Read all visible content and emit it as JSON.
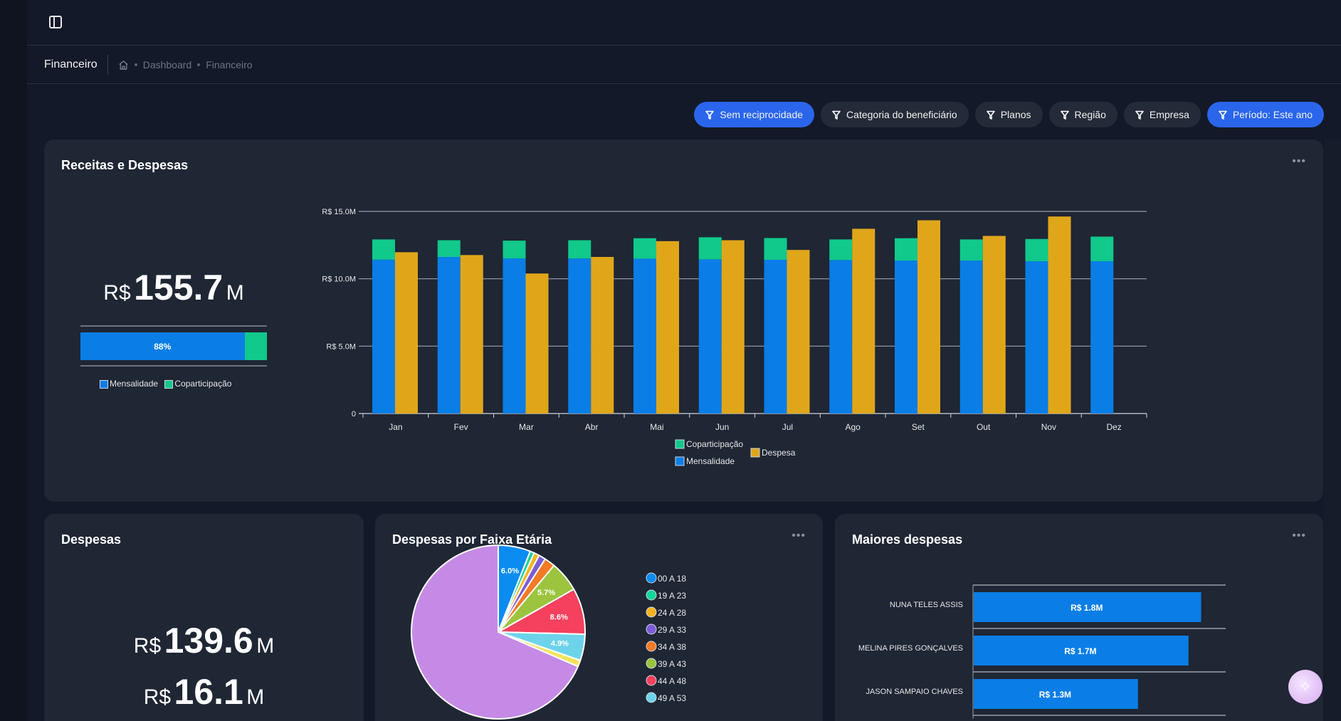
{
  "header": {
    "sidebar_toggle_icon": "sidebar-toggle-icon"
  },
  "breadcrumb": {
    "title": "Financeiro",
    "home_icon": "home-icon",
    "items": [
      "Dashboard",
      "Financeiro"
    ]
  },
  "filters": [
    {
      "label": "Sem reciprocidade",
      "active": true
    },
    {
      "label": "Categoria do beneficiário",
      "active": false
    },
    {
      "label": "Planos",
      "active": false
    },
    {
      "label": "Região",
      "active": false
    },
    {
      "label": "Empresa",
      "active": false
    },
    {
      "label": "Período: Este ano",
      "active": true
    }
  ],
  "receitas": {
    "title": "Receitas e Despesas",
    "more": "•••",
    "total": {
      "currency": "R$",
      "value": "155.7",
      "unit": "M"
    },
    "split": {
      "mensalidade_percent": 88,
      "label": "88%"
    },
    "split_legend": [
      "Mensalidade",
      "Coparticipação"
    ]
  },
  "despesas": {
    "title": "Despesas",
    "total": {
      "currency": "R$",
      "value": "139.6",
      "unit": "M"
    },
    "second": {
      "currency": "R$",
      "value": "16.1",
      "unit": "M"
    }
  },
  "colors": {
    "mensalidade": "#0a7ee6",
    "coparticipacao": "#10c98a",
    "despesa": "#e0a61a",
    "accent": "#2a66ec"
  },
  "chart_data": [
    {
      "type": "bar",
      "title": "Receitas e Despesas",
      "categories": [
        "Jan",
        "Fev",
        "Mar",
        "Abr",
        "Mai",
        "Jun",
        "Jul",
        "Ago",
        "Set",
        "Out",
        "Nov",
        "Dez"
      ],
      "yticks": [
        "0",
        "R$ 5.0M",
        "R$ 10.0M",
        "R$ 15.0M"
      ],
      "ylim": [
        0,
        15
      ],
      "unit": "R$ M",
      "series": [
        {
          "name": "Mensalidade",
          "stack": "receita",
          "color": "#0a7ee6",
          "values": [
            11.42,
            11.62,
            11.51,
            11.51,
            11.49,
            11.44,
            11.41,
            11.39,
            11.35,
            11.35,
            11.3,
            11.3
          ]
        },
        {
          "name": "Coparticipação",
          "stack": "receita",
          "color": "#10c98a",
          "values": [
            1.5,
            1.24,
            1.32,
            1.35,
            1.52,
            1.64,
            1.61,
            1.53,
            1.66,
            1.57,
            1.65,
            1.83
          ]
        },
        {
          "name": "Despesa",
          "stack": "despesa",
          "color": "#e0a61a",
          "values": [
            11.97,
            11.76,
            10.39,
            11.62,
            12.79,
            12.86,
            12.14,
            13.71,
            14.34,
            13.18,
            14.62,
            null
          ]
        }
      ],
      "legend": [
        "Coparticipação",
        "Mensalidade",
        "Despesa"
      ],
      "grid": true
    },
    {
      "type": "pie",
      "title": "Despesas por Faixa Etária",
      "more": "•••",
      "slices": [
        {
          "label": "00 A 18",
          "value": 6.0,
          "color": "#0b8cf0",
          "show_label": true
        },
        {
          "label": "19 A 23",
          "value": 0.8,
          "color": "#14d59a",
          "show_label": false
        },
        {
          "label": "24 A 28",
          "value": 1.0,
          "color": "#f6b51e",
          "show_label": false
        },
        {
          "label": "29 A 33",
          "value": 1.3,
          "color": "#7c5cd6",
          "show_label": false
        },
        {
          "label": "34 A 38",
          "value": 2.0,
          "color": "#f47a24",
          "show_label": false
        },
        {
          "label": "39 A 43",
          "value": 5.7,
          "color": "#9cc43e",
          "show_label": true
        },
        {
          "label": "44 A 48",
          "value": 8.6,
          "color": "#f5405e",
          "show_label": true
        },
        {
          "label": "49 A 53",
          "value": 4.9,
          "color": "#6dd3ea",
          "show_label": true
        },
        {
          "label": "",
          "value": 1.2,
          "color": "#f3e35a",
          "show_label": false
        },
        {
          "label": "",
          "value": 68.5,
          "color": "#c58ae6",
          "show_label": false
        }
      ]
    },
    {
      "type": "bar",
      "orientation": "horizontal",
      "title": "Maiores despesas",
      "more": "•••",
      "categories": [
        "NUNA TELES ASSIS",
        "MELINA PIRES GONÇALVES",
        "JASON SAMPAIO CHAVES"
      ],
      "values": [
        1.8,
        1.7,
        1.3
      ],
      "data_labels": [
        "R$ 1.8M",
        "R$ 1.7M",
        "R$ 1.3M"
      ],
      "xlim": [
        0,
        2.0
      ],
      "color": "#0a7ee6"
    }
  ],
  "fab": {
    "icon": "sparkle-assistant-icon"
  }
}
